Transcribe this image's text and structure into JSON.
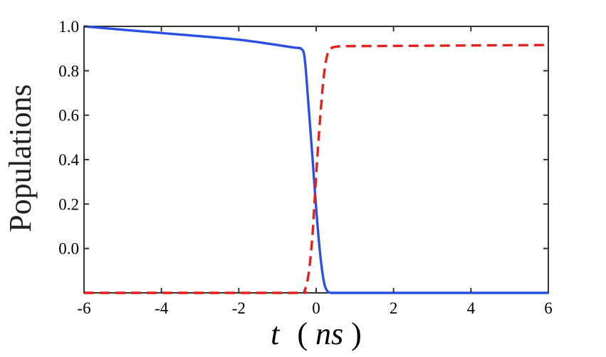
{
  "chart_data": {
    "type": "line",
    "xlabel": "t (ns)",
    "xlabel_parts": [
      "t",
      "(",
      "ns",
      ")"
    ],
    "ylabel": "Populations",
    "xlim": [
      -6,
      6
    ],
    "ylim": [
      -0.2,
      1.0
    ],
    "xticks": [
      "-6",
      "-4",
      "-2",
      "0",
      "2",
      "4",
      "6"
    ],
    "yticks": [
      "0.0",
      "0.2",
      "0.4",
      "0.6",
      "0.8",
      "1.0"
    ],
    "y_tick_values": [
      0.0,
      0.2,
      0.4,
      0.6,
      0.8,
      1.0
    ],
    "grid": false,
    "legend": null,
    "series": [
      {
        "color": "#2a4fe6",
        "style": "solid",
        "x": [
          -6,
          -4,
          -2,
          -0.6,
          -0.4,
          -0.3,
          -0.2,
          -0.1,
          0.0,
          0.1,
          0.2,
          0.3,
          0.4,
          0.6,
          2,
          4,
          6
        ],
        "y": [
          1.0,
          0.97,
          0.94,
          0.905,
          0.9,
          0.86,
          0.65,
          0.42,
          0.18,
          -0.02,
          -0.15,
          -0.195,
          -0.2,
          -0.2,
          -0.2,
          -0.2,
          -0.2
        ]
      },
      {
        "color": "#e81f1f",
        "style": "dashed",
        "x": [
          -6,
          -4,
          -2,
          -0.4,
          -0.3,
          -0.2,
          -0.1,
          0.0,
          0.1,
          0.2,
          0.3,
          0.4,
          0.6,
          1,
          2,
          4,
          6
        ],
        "y": [
          -0.2,
          -0.2,
          -0.2,
          -0.2,
          -0.19,
          -0.12,
          0.05,
          0.33,
          0.58,
          0.78,
          0.88,
          0.903,
          0.91,
          0.911,
          0.912,
          0.914,
          0.916
        ]
      }
    ]
  }
}
